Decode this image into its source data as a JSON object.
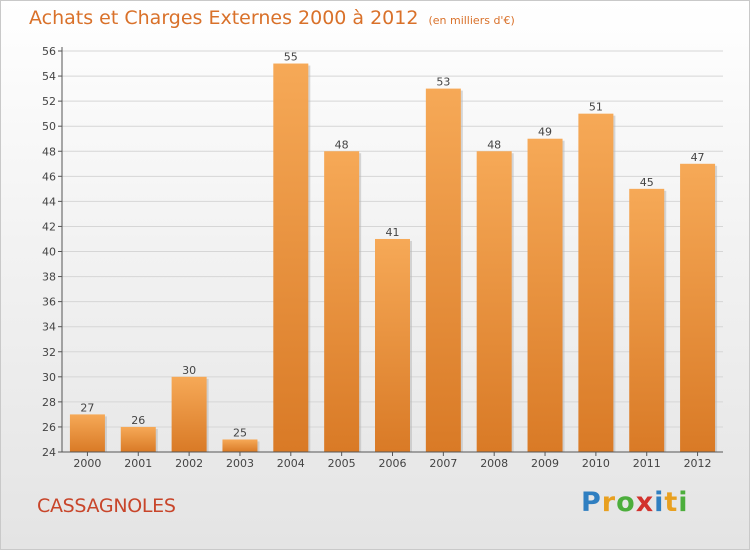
{
  "title": "Achats et Charges Externes 2000 à 2012",
  "unit": "(en milliers d'€)",
  "commune": "CASSAGNOLES",
  "brand": {
    "letters": [
      "P",
      "r",
      "o",
      "x",
      "i",
      "t",
      "i"
    ],
    "colors": [
      "#2f7fc1",
      "#e8a020",
      "#4cae3c",
      "#d2322d",
      "#2f7fc1",
      "#e8a020",
      "#4cae3c"
    ]
  },
  "colors": {
    "bar_light": "#f6a957",
    "bar_dark": "#d97a26",
    "title": "#d9712a",
    "commune": "#c8452a"
  },
  "chart_data": {
    "type": "bar",
    "categories": [
      "2000",
      "2001",
      "2002",
      "2003",
      "2004",
      "2005",
      "2006",
      "2007",
      "2008",
      "2009",
      "2010",
      "2011",
      "2012"
    ],
    "values": [
      27,
      26,
      30,
      25,
      55,
      48,
      41,
      53,
      48,
      49,
      51,
      45,
      47
    ],
    "data_labels": [
      "27",
      "26",
      "30",
      "25",
      "55",
      "48",
      "41",
      "53",
      "48",
      "49",
      "51",
      "45",
      "47"
    ],
    "y_ticks": [
      "24",
      "26",
      "28",
      "30",
      "32",
      "34",
      "36",
      "38",
      "40",
      "42",
      "44",
      "46",
      "48",
      "50",
      "52",
      "54",
      "56"
    ],
    "ylim": [
      24,
      56
    ],
    "grid": true,
    "legend": "none"
  }
}
